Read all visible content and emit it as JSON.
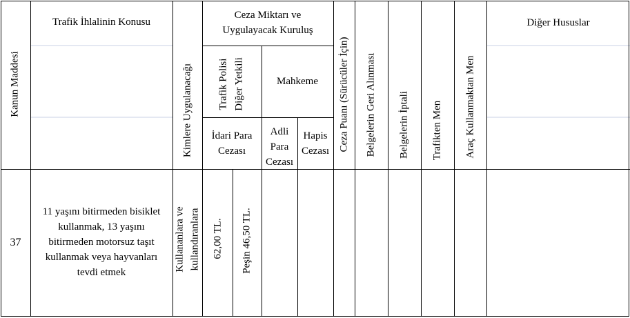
{
  "header": {
    "kanun_maddesi": "Kanun Maddesi",
    "ihlal_konusu": "Trafik İhlalinin Konusu",
    "kimlere": "Kimlere Uygulanacağı",
    "ceza_miktari_line1": "Ceza Miktarı ve",
    "ceza_miktari_line2": "Uygulayacak Kuruluş",
    "trafik_polisi_line1": "Trafik Polisi",
    "trafik_polisi_line2": "Diğer Yetkili",
    "mahkeme": "Mahkeme",
    "idari_line1": "İdari Para",
    "idari_line2": "Cezası",
    "adli_line1": "Adli",
    "adli_line2": "Para",
    "adli_line3": "Cezası",
    "hapis_line1": "Hapis",
    "hapis_line2": "Cezası",
    "ceza_puani": "Ceza Puanı (Sürücüler İçin)",
    "belge_geri": "Belgelerin Geri Alınması",
    "belge_iptal": "Belgelerin İptali",
    "trafikten_men": "Trafikten Men",
    "arac_men": "Araç Kullanmaktan Men",
    "diger": "Diğer Hususlar"
  },
  "row": {
    "madde": "37",
    "konu_line1": "11 yaşını bitirmeden bisiklet",
    "konu_line2": "kullanmak, 13 yaşını",
    "konu_line3": "bitirmeden motorsuz taşıt",
    "konu_line4": "kullanmak veya hayvanları",
    "konu_line5": "tevdi etmek",
    "kimlere_line1": "Kullananlara ve",
    "kimlere_line2": "kullandıranlara",
    "idari_para": "62,00 TL.",
    "pesin": "Peşin 46,50 TL."
  },
  "colors": {
    "border": "#000000",
    "faint_line": "#c9d2e6"
  }
}
